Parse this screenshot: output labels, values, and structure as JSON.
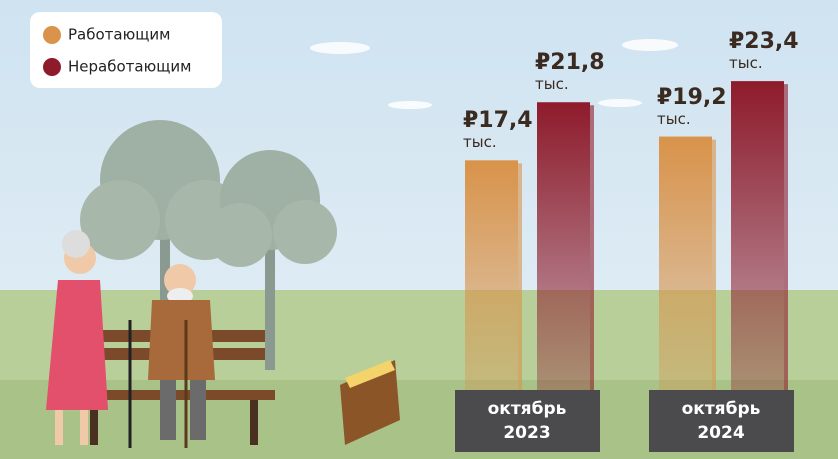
{
  "chart_data": {
    "type": "bar",
    "categories": [
      "октябрь 2023",
      "октябрь 2024"
    ],
    "series": [
      {
        "name": "Работающим",
        "color": "#d9934a",
        "values": [
          17.4,
          19.2
        ],
        "value_labels": [
          "₽17,4 тыс.",
          "₽19,2 тыс."
        ]
      },
      {
        "name": "Неработающим",
        "color": "#8e1b2b",
        "values": [
          21.8,
          23.4
        ],
        "value_labels": [
          "₽21,8 тыс.",
          "₽23,4 тыс."
        ]
      }
    ],
    "legend": "top-left"
  }
}
